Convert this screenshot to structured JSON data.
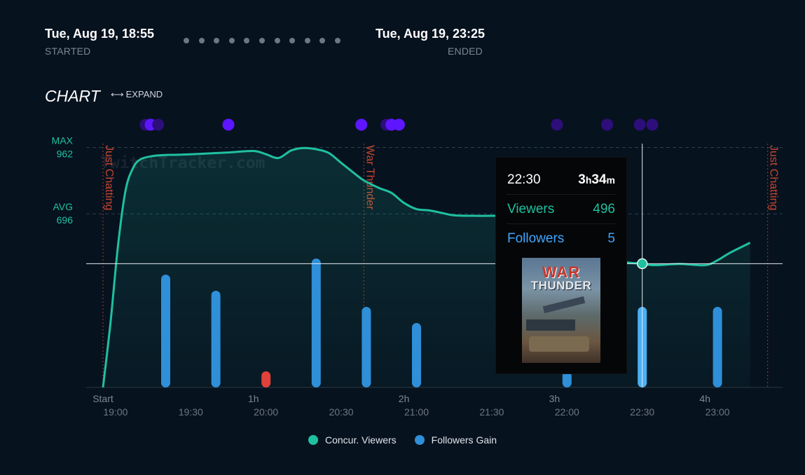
{
  "header": {
    "start_time": "Tue, Aug 19, 18:55",
    "start_label": "STARTED",
    "end_time": "Tue, Aug 19, 23:25",
    "end_label": "ENDED"
  },
  "chart_header": {
    "title": "CHART",
    "expand_label": "EXPAND",
    "expand_icon": "arrows-horizontal-icon"
  },
  "watermark": "TwitchTracker.com",
  "tooltip": {
    "time": "22:30",
    "duration_h": "3",
    "duration_h_unit": "h",
    "duration_m": "34",
    "duration_m_unit": "m",
    "viewers_label": "Viewers",
    "viewers_value": "496",
    "followers_label": "Followers",
    "followers_value": "5",
    "game_title_1": "WAR",
    "game_title_2": "THUNDER"
  },
  "colors": {
    "viewers": "#1fc0a0",
    "followers": "#2f8fd8",
    "followers_negative": "#e0413a",
    "category_marker": "#c7462e",
    "event_dot_bright": "#5d16ff",
    "event_dot_dim": "#2d0e7a"
  },
  "chart_data": {
    "type": "line+bar",
    "x_unit": "minutes since stream start (18:55)",
    "duration_ticks": [
      {
        "minutes": 0,
        "label": "Start"
      },
      {
        "minutes": 60,
        "label": "1h"
      },
      {
        "minutes": 120,
        "label": "2h"
      },
      {
        "minutes": 180,
        "label": "3h"
      },
      {
        "minutes": 240,
        "label": "4h"
      }
    ],
    "time_ticks": [
      {
        "minutes": 5,
        "label": "19:00"
      },
      {
        "minutes": 35,
        "label": "19:30"
      },
      {
        "minutes": 65,
        "label": "20:00"
      },
      {
        "minutes": 95,
        "label": "20:30"
      },
      {
        "minutes": 125,
        "label": "21:00"
      },
      {
        "minutes": 155,
        "label": "21:30"
      },
      {
        "minutes": 185,
        "label": "22:00"
      },
      {
        "minutes": 215,
        "label": "22:30"
      },
      {
        "minutes": 245,
        "label": "23:00"
      }
    ],
    "reference_lines": [
      {
        "label": "MAX",
        "value": 962
      },
      {
        "label": "AVG",
        "value": 696
      }
    ],
    "categories": [
      {
        "minutes": 0,
        "label": "Just Chatting"
      },
      {
        "minutes": 104,
        "label": "War Thunder"
      },
      {
        "minutes": 265,
        "label": "Just Chatting"
      }
    ],
    "series": [
      {
        "name": "Concur. Viewers",
        "x": [
          0,
          3,
          6,
          9,
          12,
          15,
          20,
          25,
          30,
          40,
          50,
          60,
          65,
          70,
          75,
          80,
          85,
          90,
          95,
          100,
          104,
          110,
          115,
          120,
          125,
          130,
          135,
          140,
          150,
          160,
          170,
          180,
          190,
          200,
          210,
          214,
          215,
          220,
          230,
          240,
          245,
          250,
          258
        ],
        "y": [
          0,
          260,
          570,
          790,
          880,
          915,
          928,
          932,
          933,
          937,
          942,
          948,
          935,
          920,
          950,
          960,
          955,
          940,
          900,
          860,
          830,
          800,
          780,
          740,
          715,
          710,
          700,
          690,
          688,
          688,
          685,
          640,
          570,
          520,
          500,
          498,
          496,
          490,
          495,
          490,
          510,
          540,
          580
        ]
      },
      {
        "name": "Followers Gain",
        "x": [
          25,
          45,
          65,
          85,
          105,
          125,
          185,
          215,
          245
        ],
        "y": [
          7,
          6,
          -1,
          8,
          5,
          4,
          1,
          5,
          5
        ]
      }
    ],
    "event_markers_minutes": [
      [
        17,
        "dim"
      ],
      [
        19,
        "bright"
      ],
      [
        22,
        "dim"
      ],
      [
        50,
        "bright"
      ],
      [
        103,
        "bright"
      ],
      [
        113,
        "dim"
      ],
      [
        115,
        "bright"
      ],
      [
        118,
        "bright"
      ],
      [
        181,
        "dim"
      ],
      [
        201,
        "dim"
      ],
      [
        214,
        "dim"
      ],
      [
        219,
        "dim"
      ]
    ],
    "y_range": [
      0,
      1000
    ],
    "hover_minutes": 215
  },
  "legend": [
    {
      "label": "Concur. Viewers",
      "color": "#1fc0a0"
    },
    {
      "label": "Followers Gain",
      "color": "#2f8fd8"
    }
  ]
}
